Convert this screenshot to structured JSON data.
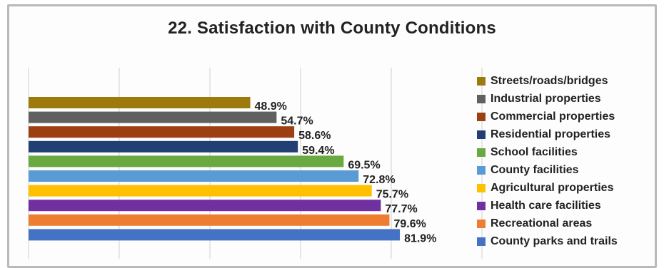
{
  "chart_data": {
    "type": "bar",
    "orientation": "horizontal",
    "title": "22. Satisfaction with County Conditions",
    "categories": [
      "Streets/roads/bridges",
      "Industrial properties",
      "Commercial properties",
      "Residential properties",
      "School facilities",
      "County facilities",
      "Agricultural properties",
      "Health care facilities",
      "Recreational areas",
      "County parks and trails"
    ],
    "values": [
      48.9,
      54.7,
      58.6,
      59.4,
      69.5,
      72.8,
      75.7,
      77.7,
      79.6,
      81.9
    ],
    "data_labels": [
      "48.9%",
      "54.7%",
      "58.6%",
      "59.4%",
      "69.5%",
      "72.8%",
      "75.7%",
      "77.7%",
      "79.6%",
      "81.9%"
    ],
    "colors": [
      "#9c7a0c",
      "#606060",
      "#9c3f11",
      "#213f72",
      "#6aa842",
      "#5b9bd5",
      "#ffc000",
      "#7030a0",
      "#ed7d31",
      "#4472c4"
    ],
    "xlim": [
      0,
      100
    ],
    "grid": true,
    "legend_position": "right"
  }
}
